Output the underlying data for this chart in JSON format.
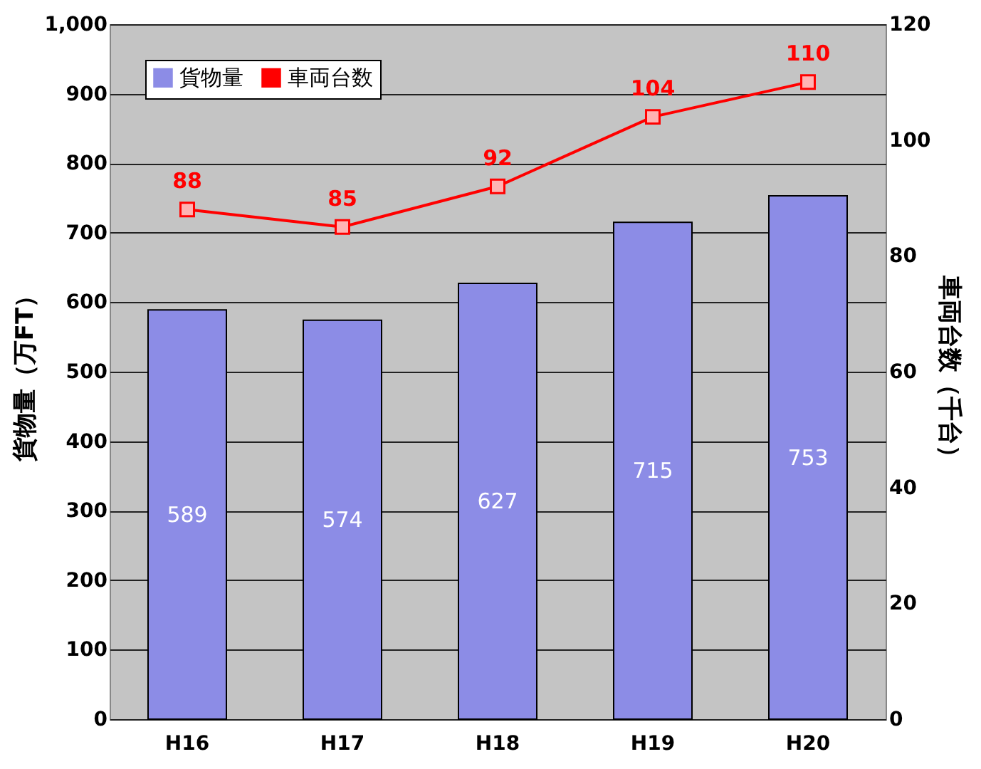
{
  "chart_data": {
    "type": "bar",
    "ylabel": "貨物量（万FT）",
    "y2label": "車両台数（千台）",
    "categories": [
      "H16",
      "H17",
      "H18",
      "H19",
      "H20"
    ],
    "series": [
      {
        "name": "貨物量",
        "color": "#8c8ce6",
        "values": [
          589,
          574,
          627,
          715,
          753
        ]
      },
      {
        "name": "車両台数",
        "type": "line",
        "axis": "y2",
        "color": "#ff0000",
        "values": [
          88,
          85,
          92,
          104,
          110
        ]
      }
    ],
    "ylim": [
      0,
      1000
    ],
    "yticks": [
      0,
      100,
      200,
      300,
      400,
      500,
      600,
      700,
      800,
      900,
      {
        "value": 1000,
        "label": "1,000"
      }
    ],
    "y2lim": [
      0,
      120
    ],
    "y2ticks": [
      0,
      20,
      40,
      60,
      80,
      100,
      120
    ],
    "data_labels": true,
    "grid": "y",
    "legend": "top left",
    "marker": "square",
    "line_style": "solid"
  }
}
